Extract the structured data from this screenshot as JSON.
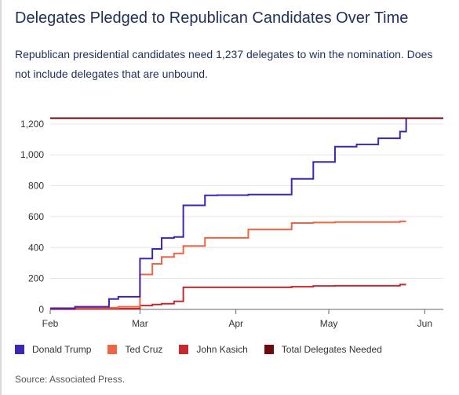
{
  "title": "Delegates Pledged to Republican Candidates Over Time",
  "subtitle": "Republican presidential candidates need 1,237 delegates to win the nomination. Does not include delegates that are unbound.",
  "source": "Source: Associated Press.",
  "colors": {
    "trump": "#3f24b8",
    "cruz": "#ee6444",
    "kasich": "#c8282e",
    "needed": "#6d0b11",
    "grid": "#e6e6e6",
    "axis": "#666666"
  },
  "legend": [
    {
      "name": "Donald Trump",
      "color": "#3f24b8"
    },
    {
      "name": "Ted Cruz",
      "color": "#ee6444"
    },
    {
      "name": "John Kasich",
      "color": "#c8282e"
    },
    {
      "name": "Total Delegates Needed",
      "color": "#6d0b11"
    }
  ],
  "chart_data": {
    "type": "line",
    "step": true,
    "title": "Delegates Pledged to Republican Candidates Over Time",
    "xlabel": "",
    "ylabel": "",
    "xlim": [
      "2016-02-01",
      "2016-06-07"
    ],
    "ylim": [
      0,
      1250
    ],
    "grid": true,
    "legend_position": "bottom-left",
    "x_ticks": [
      {
        "label": "Feb",
        "date": "2016-02-01"
      },
      {
        "label": "Mar",
        "date": "2016-03-01"
      },
      {
        "label": "Apr",
        "date": "2016-04-01"
      },
      {
        "label": "May",
        "date": "2016-05-01"
      },
      {
        "label": "Jun",
        "date": "2016-06-01"
      }
    ],
    "y_ticks": [
      0,
      200,
      400,
      600,
      800,
      1000,
      1200
    ],
    "y_tick_labels": [
      "0",
      "200",
      "400",
      "600",
      "800",
      "1,000",
      "1,200"
    ],
    "series": [
      {
        "name": "Donald Trump",
        "color": "#3f24b8",
        "points": [
          [
            "2016-02-01",
            7
          ],
          [
            "2016-02-09",
            17
          ],
          [
            "2016-02-20",
            67
          ],
          [
            "2016-02-23",
            82
          ],
          [
            "2016-03-01",
            329
          ],
          [
            "2016-03-05",
            391
          ],
          [
            "2016-03-08",
            462
          ],
          [
            "2016-03-12",
            469
          ],
          [
            "2016-03-15",
            673
          ],
          [
            "2016-03-22",
            738
          ],
          [
            "2016-03-26",
            739
          ],
          [
            "2016-04-05",
            743
          ],
          [
            "2016-04-19",
            845
          ],
          [
            "2016-04-26",
            954
          ],
          [
            "2016-05-03",
            1053
          ],
          [
            "2016-05-10",
            1068
          ],
          [
            "2016-05-17",
            1107
          ],
          [
            "2016-05-24",
            1151
          ],
          [
            "2016-05-26",
            1237
          ]
        ]
      },
      {
        "name": "Ted Cruz",
        "color": "#ee6444",
        "points": [
          [
            "2016-02-01",
            8
          ],
          [
            "2016-02-09",
            11
          ],
          [
            "2016-02-20",
            11
          ],
          [
            "2016-02-23",
            17
          ],
          [
            "2016-03-01",
            226
          ],
          [
            "2016-03-05",
            295
          ],
          [
            "2016-03-08",
            339
          ],
          [
            "2016-03-12",
            362
          ],
          [
            "2016-03-15",
            410
          ],
          [
            "2016-03-22",
            463
          ],
          [
            "2016-03-26",
            463
          ],
          [
            "2016-04-05",
            517
          ],
          [
            "2016-04-19",
            559
          ],
          [
            "2016-04-26",
            562
          ],
          [
            "2016-05-03",
            565
          ],
          [
            "2016-05-10",
            565
          ],
          [
            "2016-05-17",
            565
          ],
          [
            "2016-05-24",
            570
          ],
          [
            "2016-05-26",
            570
          ]
        ]
      },
      {
        "name": "John Kasich",
        "color": "#c8282e",
        "points": [
          [
            "2016-02-01",
            1
          ],
          [
            "2016-02-09",
            4
          ],
          [
            "2016-02-20",
            4
          ],
          [
            "2016-02-23",
            5
          ],
          [
            "2016-03-01",
            25
          ],
          [
            "2016-03-05",
            32
          ],
          [
            "2016-03-08",
            37
          ],
          [
            "2016-03-12",
            52
          ],
          [
            "2016-03-15",
            143
          ],
          [
            "2016-03-22",
            143
          ],
          [
            "2016-03-26",
            143
          ],
          [
            "2016-04-05",
            143
          ],
          [
            "2016-04-19",
            147
          ],
          [
            "2016-04-26",
            152
          ],
          [
            "2016-05-03",
            153
          ],
          [
            "2016-05-10",
            153
          ],
          [
            "2016-05-17",
            153
          ],
          [
            "2016-05-24",
            161
          ],
          [
            "2016-05-26",
            161
          ]
        ]
      },
      {
        "name": "Total Delegates Needed",
        "color": "#6d0b11",
        "points": [
          [
            "2016-02-01",
            1237
          ],
          [
            "2016-06-07",
            1237
          ]
        ]
      }
    ]
  }
}
